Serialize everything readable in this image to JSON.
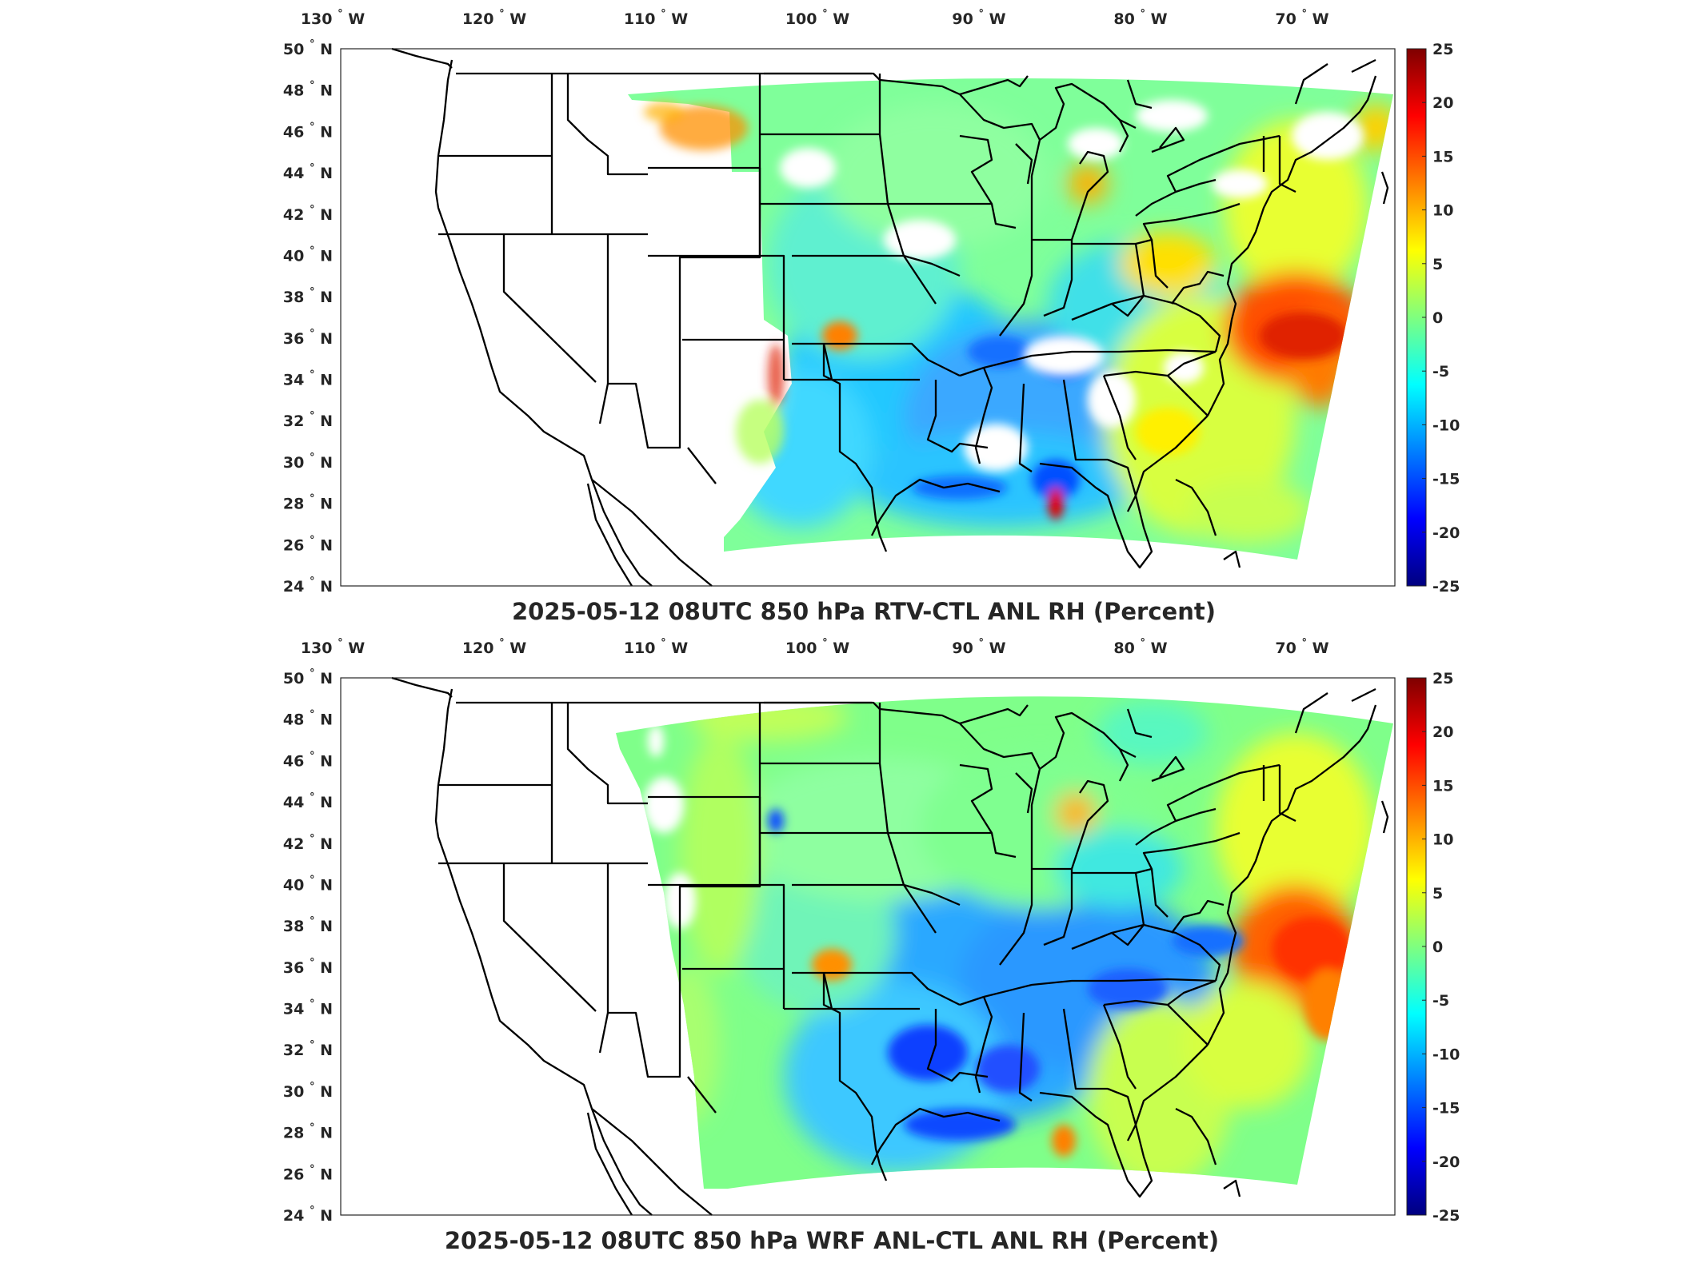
{
  "figure": {
    "panels": [
      {
        "id": "top",
        "title": "2025-05-12 08UTC 850 hPa RTV-CTL ANL RH (Percent)",
        "variant": "rtv"
      },
      {
        "id": "bottom",
        "title": "2025-05-12 08UTC 850 hPa WRF ANL-CTL ANL RH (Percent)",
        "variant": "wrf"
      }
    ],
    "lon_ticks": [
      "130",
      "120",
      "110",
      "100",
      "90",
      "80",
      "70"
    ],
    "lon_hemisphere": "W",
    "lat_ticks": [
      "24",
      "26",
      "28",
      "30",
      "32",
      "34",
      "36",
      "38",
      "40",
      "42",
      "44",
      "46",
      "48",
      "50"
    ],
    "lat_hemisphere": "N",
    "degree_symbol": "°",
    "colorbar": {
      "ticks": [
        "25",
        "20",
        "15",
        "10",
        "5",
        "0",
        "-5",
        "-10",
        "-15",
        "-20",
        "-25"
      ],
      "colormap": "jet",
      "colors": [
        "#00007f",
        "#0000ff",
        "#007fff",
        "#00ffff",
        "#7fff7f",
        "#ffff00",
        "#ff7f00",
        "#ff0000",
        "#7f0000"
      ]
    }
  },
  "chart_data": [
    {
      "type": "heatmap",
      "title": "2025-05-12 08UTC 850 hPa RTV-CTL ANL RH (Percent)",
      "projection": "lambert conformal (CONUS)",
      "lon_range": [
        -132,
        -65
      ],
      "lat_range": [
        24,
        50
      ],
      "x_ticks": [
        "130° W",
        "120° W",
        "110° W",
        "100° W",
        "90° W",
        "80° W",
        "70° W"
      ],
      "y_ticks": [
        "24° N",
        "26° N",
        "28° N",
        "30° N",
        "32° N",
        "34° N",
        "36° N",
        "38° N",
        "40° N",
        "42° N",
        "44° N",
        "46° N",
        "48° N",
        "50° N"
      ],
      "color_range": [
        -25,
        25
      ],
      "colorbar_ticks": [
        -25,
        -20,
        -15,
        -10,
        -5,
        0,
        5,
        10,
        15,
        20,
        25
      ],
      "features": [
        {
          "region": "Mid-Atlantic coast offshore",
          "value_range": [
            10,
            22
          ]
        },
        {
          "region": "Southeast US / Gulf states",
          "value_range": [
            -12,
            -5
          ]
        },
        {
          "region": "Great Plains / Midwest",
          "value_range": [
            -5,
            3
          ]
        },
        {
          "region": "Northern Rockies edge",
          "value_range": [
            10,
            25
          ]
        },
        {
          "region": "New Mexico / Texas border edge",
          "value_range": [
            10,
            22
          ]
        }
      ]
    },
    {
      "type": "heatmap",
      "title": "2025-05-12 08UTC 850 hPa WRF ANL-CTL ANL RH (Percent)",
      "projection": "lambert conformal (CONUS)",
      "lon_range": [
        -132,
        -65
      ],
      "lat_range": [
        24,
        50
      ],
      "x_ticks": [
        "130° W",
        "120° W",
        "110° W",
        "100° W",
        "90° W",
        "80° W",
        "70° W"
      ],
      "y_ticks": [
        "24° N",
        "26° N",
        "28° N",
        "30° N",
        "32° N",
        "34° N",
        "36° N",
        "38° N",
        "40° N",
        "42° N",
        "44° N",
        "46° N",
        "48° N",
        "50° N"
      ],
      "color_range": [
        -25,
        25
      ],
      "colorbar_ticks": [
        -25,
        -20,
        -15,
        -10,
        -5,
        0,
        5,
        10,
        15,
        20,
        25
      ],
      "features": [
        {
          "region": "Mid-Atlantic coast offshore",
          "value_range": [
            10,
            20
          ]
        },
        {
          "region": "Southeast US / Gulf states",
          "value_range": [
            -15,
            -8
          ]
        },
        {
          "region": "Great Plains / Midwest",
          "value_range": [
            -3,
            3
          ]
        },
        {
          "region": "Northern domain edge",
          "value_range": [
            -1,
            2
          ]
        }
      ]
    }
  ]
}
